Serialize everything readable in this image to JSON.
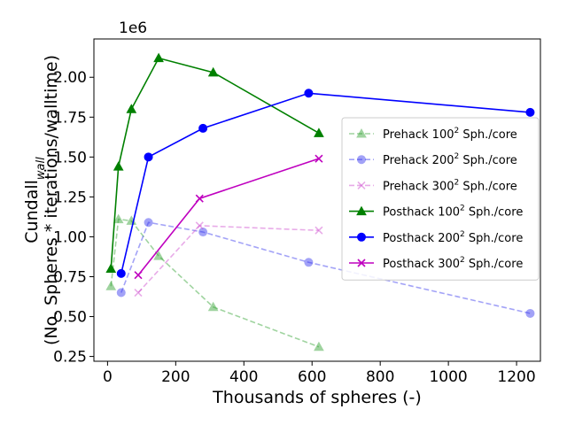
{
  "chart_data": {
    "type": "line",
    "title": "",
    "xlabel": "Thousands of spheres (-)",
    "ylabel_line1_prefix": "Cundall",
    "ylabel_line1_subscript": "wall",
    "ylabel_line2": "(No. Spheres * iterations/walltime)",
    "y_offset_text": "1e6",
    "xlim": [
      -40,
      1270
    ],
    "ylim": [
      0.22,
      2.24
    ],
    "y_scale_multiplier": 1000000,
    "xticks": [
      0,
      200,
      400,
      600,
      800,
      1000,
      1200
    ],
    "xtick_labels": [
      "0",
      "200",
      "400",
      "600",
      "800",
      "1000",
      "1200"
    ],
    "yticks": [
      0.25,
      0.5,
      0.75,
      1.0,
      1.25,
      1.5,
      1.75,
      2.0
    ],
    "ytick_labels": [
      "0.25",
      "0.50",
      "0.75",
      "1.00",
      "1.25",
      "1.50",
      "1.75",
      "2.00"
    ],
    "grid": false,
    "legend_position": "center-right",
    "series": [
      {
        "name_prefix": "Prehack 100",
        "name_suffix": " Sph./core",
        "color": "#2ca02c",
        "line": "dashed",
        "marker": "triangle",
        "faded": true,
        "x": [
          10,
          32,
          70,
          150,
          310,
          620
        ],
        "y": [
          0.69,
          1.11,
          1.1,
          0.88,
          0.56,
          0.31
        ]
      },
      {
        "name_prefix": "Prehack 200",
        "name_suffix": " Sph./core",
        "color": "#3333ee",
        "line": "dashed",
        "marker": "circle",
        "faded": true,
        "x": [
          40,
          120,
          280,
          590,
          1240
        ],
        "y": [
          0.65,
          1.09,
          1.03,
          0.84,
          0.52
        ]
      },
      {
        "name_prefix": "Prehack 300",
        "name_suffix": " Sph./core",
        "color": "#cc44cc",
        "line": "dashed",
        "marker": "x",
        "faded": true,
        "x": [
          90,
          270,
          620
        ],
        "y": [
          0.65,
          1.07,
          1.04
        ]
      },
      {
        "name_prefix": "Posthack 100",
        "name_suffix": " Sph./core",
        "color": "#008000",
        "line": "solid",
        "marker": "triangle",
        "faded": false,
        "x": [
          10,
          32,
          70,
          150,
          310,
          620
        ],
        "y": [
          0.8,
          1.44,
          1.8,
          2.12,
          2.03,
          1.65
        ]
      },
      {
        "name_prefix": "Posthack 200",
        "name_suffix": " Sph./core",
        "color": "#0000ff",
        "line": "solid",
        "marker": "circle",
        "faded": false,
        "x": [
          40,
          120,
          280,
          590,
          1240
        ],
        "y": [
          0.77,
          1.5,
          1.68,
          1.9,
          1.78
        ]
      },
      {
        "name_prefix": "Posthack 300",
        "name_suffix": " Sph./core",
        "color": "#bf00bf",
        "line": "solid",
        "marker": "x",
        "faded": false,
        "x": [
          90,
          270,
          620
        ],
        "y": [
          0.76,
          1.24,
          1.49
        ]
      }
    ],
    "superscript": "2"
  }
}
